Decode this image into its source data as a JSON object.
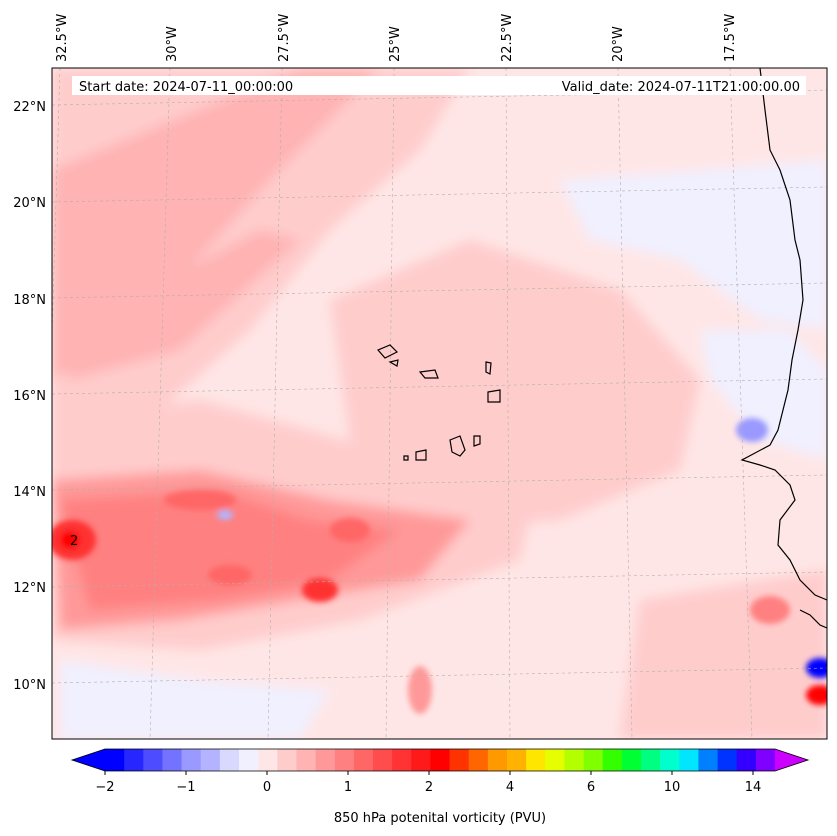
{
  "map": {
    "start_label": "Start date: 2024-07-11_00:00:00",
    "valid_label": "Valid_date: 2024-07-11T21:00:00.00",
    "lon_labels": [
      "32.5°W",
      "30°W",
      "27.5°W",
      "25°W",
      "22.5°W",
      "20°W",
      "17.5°W"
    ],
    "lat_labels": [
      "22°N",
      "20°N",
      "18°N",
      "16°N",
      "14°N",
      "12°N",
      "10°N"
    ],
    "max_marker": "2"
  },
  "colorbar": {
    "label": "850 hPa potenital vorticity (PVU)",
    "tick_labels": [
      "−2",
      "−1",
      "0",
      "1",
      "2",
      "4",
      "6",
      "10",
      "14"
    ],
    "colors": [
      "#0000ff",
      "#2626ff",
      "#4d4dff",
      "#7373ff",
      "#9999ff",
      "#b3b3ff",
      "#d9d9ff",
      "#f0f0ff",
      "#ffe6e6",
      "#ffcccc",
      "#ffb3b3",
      "#ff9999",
      "#ff8080",
      "#ff6666",
      "#ff4d4d",
      "#ff3333",
      "#ff1a1a",
      "#ff0000",
      "#ff3300",
      "#ff6600",
      "#ff9900",
      "#ffb300",
      "#ffe600",
      "#e6ff00",
      "#b3ff00",
      "#80ff00",
      "#33ff00",
      "#00ff33",
      "#00ff80",
      "#00ffcc",
      "#00e6ff",
      "#0080ff",
      "#0033ff",
      "#3300ff",
      "#8000ff"
    ],
    "under_color": "#0000ff",
    "over_color": "#cc00ff"
  }
}
